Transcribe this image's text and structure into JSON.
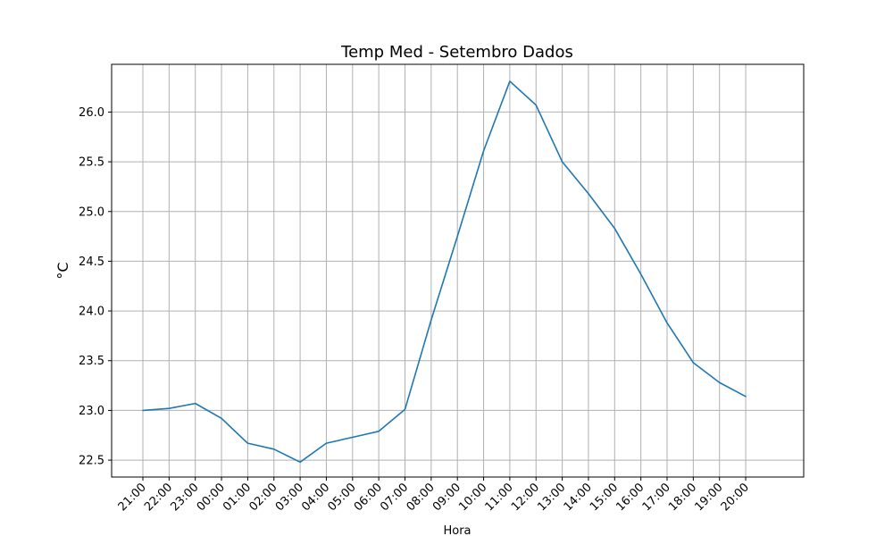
{
  "chart_data": {
    "type": "line",
    "title": "Temp Med - Setembro Dados",
    "xlabel": "Hora",
    "ylabel": "°C",
    "x_tick_labels": [
      "21:00",
      "22:00",
      "23:00",
      "00:00",
      "01:00",
      "02:00",
      "03:00",
      "04:00",
      "05:00",
      "06:00",
      "07:00",
      "08:00",
      "09:00",
      "10:00",
      "11:00",
      "12:00",
      "13:00",
      "14:00",
      "15:00",
      "16:00",
      "17:00",
      "18:00",
      "19:00",
      "20:00"
    ],
    "y_ticks": [
      22.5,
      23.0,
      23.5,
      24.0,
      24.5,
      25.0,
      25.5,
      26.0
    ],
    "ylim": [
      22.33,
      26.48
    ],
    "grid": true,
    "series": [
      {
        "color": "#1f77b4",
        "values": [
          23.0,
          23.02,
          23.07,
          22.92,
          22.67,
          22.61,
          22.48,
          22.67,
          22.73,
          22.79,
          23.01,
          23.91,
          24.75,
          25.61,
          26.31,
          26.07,
          25.5,
          25.18,
          24.83,
          24.37,
          23.88,
          23.48,
          23.28,
          23.14
        ]
      }
    ]
  }
}
